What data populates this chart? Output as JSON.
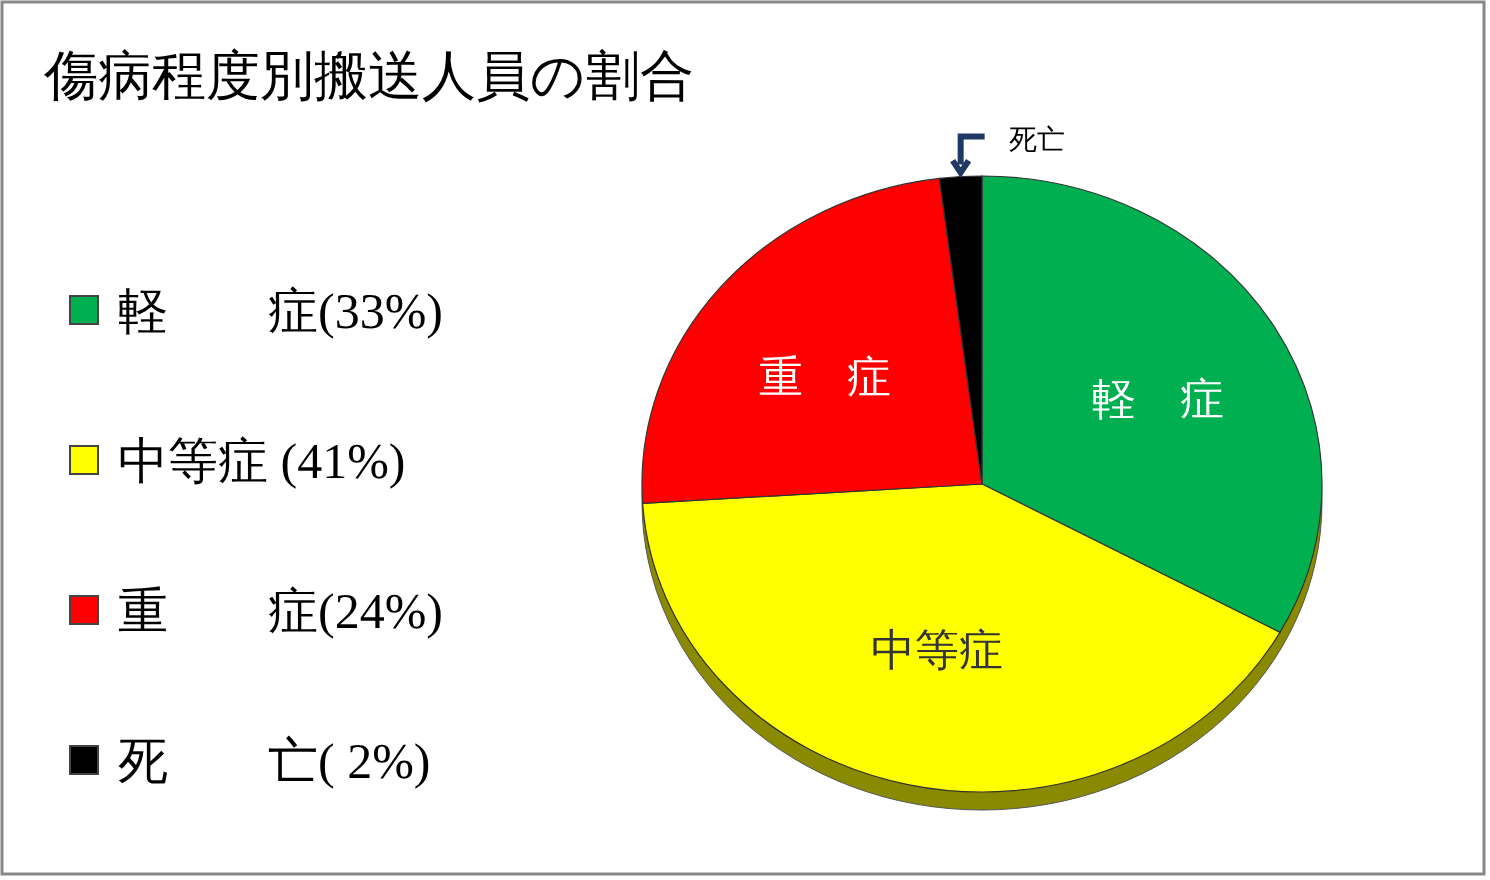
{
  "chart_data": {
    "type": "pie",
    "title": "傷病程度別搬送人員の割合",
    "categories": [
      "軽　　症(33%)",
      "中等症 (41%)",
      "重　　症(24%)",
      "死　　亡( 2%)"
    ],
    "values": [
      33,
      41,
      24,
      2
    ],
    "colors": [
      "#00b050",
      "#ffff00",
      "#ff0000",
      "#000000"
    ],
    "annotations": [
      "軽　症",
      "中等症",
      "重　症",
      "死亡"
    ],
    "legend": "left"
  }
}
